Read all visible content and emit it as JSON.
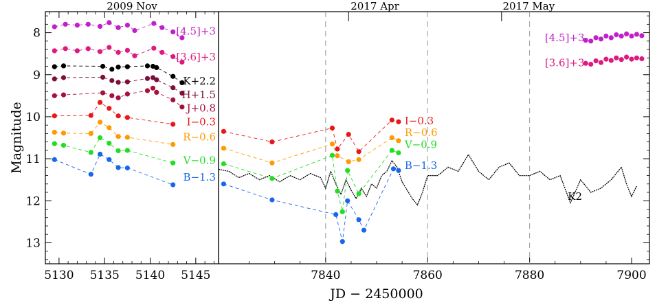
{
  "chart_data": {
    "type": "scatter",
    "ylabel": "Magnitude",
    "xlabel": "JD − 2450000",
    "ylim": [
      7.5,
      13.5
    ],
    "y_ticks": [
      8,
      9,
      10,
      11,
      12,
      13
    ],
    "y_tick_labels": [
      "8",
      "9",
      "10",
      "11",
      "12",
      "13"
    ],
    "panels": [
      {
        "name": "left",
        "title": "2009 Nov",
        "xlim": [
          5128.5,
          5147.5
        ],
        "x_ticks": [
          5130,
          5135,
          5140,
          5145
        ],
        "x_tick_labels": [
          "5130",
          "5135",
          "5140",
          "5145"
        ],
        "series": [
          {
            "name": "[4.5]+3",
            "color": "#c020c8",
            "x": [
              5129.5,
              5130.7,
              5132.0,
              5133.2,
              5134.5,
              5135.5,
              5136.5,
              5137.5,
              5138.3,
              5140.4,
              5141.3,
              5142.5,
              5143.5
            ],
            "y": [
              7.86,
              7.8,
              7.82,
              7.8,
              7.85,
              7.76,
              7.88,
              7.82,
              7.95,
              7.78,
              7.88,
              7.98,
              8.12
            ]
          },
          {
            "name": "[3.6]+3",
            "color": "#dd1a80",
            "x": [
              5129.5,
              5130.7,
              5132.0,
              5133.2,
              5134.5,
              5135.5,
              5136.5,
              5137.5,
              5138.3,
              5140.4,
              5141.3,
              5142.5,
              5143.5
            ],
            "y": [
              8.43,
              8.38,
              8.43,
              8.38,
              8.45,
              8.35,
              8.47,
              8.42,
              8.55,
              8.37,
              8.47,
              8.57,
              8.7
            ]
          },
          {
            "name": "K+2.2",
            "color": "#000000",
            "x": [
              5129.5,
              5130.5,
              5134.8,
              5135.8,
              5136.5,
              5137.5,
              5139.7,
              5140.3,
              5140.7,
              5142.5,
              5143.5
            ],
            "y": [
              8.81,
              8.79,
              8.8,
              8.87,
              8.82,
              8.81,
              8.79,
              8.8,
              8.83,
              9.04,
              9.19
            ]
          },
          {
            "name": "H+1.5",
            "color": "#7c0f3a",
            "x": [
              5129.5,
              5130.5,
              5134.8,
              5135.8,
              5136.5,
              5137.5,
              5139.7,
              5140.3,
              5140.7,
              5142.5,
              5143.5
            ],
            "y": [
              9.1,
              9.07,
              9.06,
              9.14,
              9.18,
              9.17,
              9.09,
              9.07,
              9.12,
              9.31,
              9.44
            ]
          },
          {
            "name": "J+0.8",
            "color": "#a8103c",
            "x": [
              5129.5,
              5130.5,
              5134.8,
              5135.8,
              5136.5,
              5137.5,
              5139.7,
              5140.3,
              5140.7,
              5142.5,
              5143.5
            ],
            "y": [
              9.5,
              9.48,
              9.43,
              9.5,
              9.55,
              9.46,
              9.38,
              9.32,
              9.42,
              9.6,
              9.77
            ]
          },
          {
            "name": "I−0.3",
            "color": "#e81818",
            "x": [
              5129.5,
              5133.5,
              5134.5,
              5135.5,
              5136.5,
              5137.5,
              5142.5
            ],
            "y": [
              9.98,
              9.97,
              9.66,
              9.8,
              9.98,
              10.02,
              10.18
            ]
          },
          {
            "name": "R−0.6",
            "color": "#ff9900",
            "x": [
              5129.5,
              5130.5,
              5133.5,
              5134.5,
              5135.5,
              5136.5,
              5137.5,
              5142.5
            ],
            "y": [
              10.37,
              10.39,
              10.4,
              10.13,
              10.26,
              10.47,
              10.49,
              10.66
            ]
          },
          {
            "name": "V−0.9",
            "color": "#22dd22",
            "x": [
              5129.5,
              5130.5,
              5133.5,
              5134.5,
              5135.5,
              5136.5,
              5137.5,
              5142.5
            ],
            "y": [
              10.64,
              10.68,
              10.85,
              10.5,
              10.63,
              10.81,
              10.8,
              11.1
            ]
          },
          {
            "name": "B−1.3",
            "color": "#1a66e8",
            "x": [
              5129.5,
              5133.5,
              5134.5,
              5135.5,
              5136.5,
              5137.5,
              5142.5
            ],
            "y": [
              11.02,
              11.37,
              10.89,
              11.02,
              11.21,
              11.22,
              11.62
            ]
          }
        ]
      },
      {
        "name": "right",
        "xlim": [
          7819.0,
          7903.5
        ],
        "x_ticks": [
          7840,
          7860,
          7880,
          7900
        ],
        "x_tick_labels": [
          "7840",
          "7860",
          "7880",
          "7900"
        ],
        "month_labels": [
          {
            "text": "2017 Apr",
            "x": 7844.5
          },
          {
            "text": "2017 May",
            "x": 7874.5
          }
        ],
        "vertical_dashed_lines": [
          7840,
          7860,
          7880
        ],
        "series": [
          {
            "name": "I−0.3",
            "color": "#e81818",
            "x": [
              7820.0,
              7829.5,
              7841.3,
              7842.3,
              7844.5,
              7846.5,
              7853.0,
              7854.3
            ],
            "y": [
              10.35,
              10.6,
              10.27,
              10.77,
              10.42,
              10.83,
              10.08,
              10.12
            ]
          },
          {
            "name": "R−0.6",
            "color": "#ff9900",
            "x": [
              7820.0,
              7829.5,
              7841.3,
              7842.3,
              7844.5,
              7846.5,
              7853.0,
              7854.3
            ],
            "y": [
              10.75,
              11.1,
              10.65,
              10.93,
              11.07,
              11.02,
              10.5,
              10.57
            ]
          },
          {
            "name": "V−0.9",
            "color": "#22dd22",
            "x": [
              7820.0,
              7829.5,
              7841.3,
              7842.3,
              7843.3,
              7844.3,
              7846.5,
              7853.0,
              7854.3
            ],
            "y": [
              11.12,
              11.47,
              10.92,
              11.77,
              12.26,
              11.28,
              11.83,
              10.8,
              10.86
            ]
          },
          {
            "name": "B−1.3",
            "color": "#1a66e8",
            "x": [
              7820.0,
              7829.5,
              7842.0,
              7843.3,
              7844.3,
              7846.5,
              7847.5,
              7853.3,
              7854.3
            ],
            "y": [
              11.6,
              11.98,
              12.33,
              12.97,
              12.0,
              12.45,
              12.7,
              11.24,
              11.28
            ]
          },
          {
            "name": "[4.5]+3",
            "color": "#c020c8",
            "x": [
              7891.0,
              7892.0,
              7893.0,
              7894.0,
              7895.0,
              7896.0,
              7897.0,
              7898.0,
              7899.0,
              7900.0,
              7901.0,
              7902.0
            ],
            "y": [
              8.18,
              8.2,
              8.12,
              8.15,
              8.08,
              8.12,
              8.05,
              8.08,
              8.03,
              8.08,
              8.04,
              8.07
            ]
          },
          {
            "name": "[3.6]+3",
            "color": "#dd1a80",
            "x": [
              7891.0,
              7892.0,
              7893.0,
              7894.0,
              7895.0,
              7896.0,
              7897.0,
              7898.0,
              7899.0,
              7900.0,
              7901.0,
              7902.0
            ],
            "y": [
              8.73,
              8.75,
              8.67,
              8.71,
              8.63,
              8.66,
              8.6,
              8.64,
              8.58,
              8.63,
              8.6,
              8.62
            ]
          }
        ],
        "k2": {
          "name": "K2",
          "color": "#000000",
          "x": [
            7819,
            7821,
            7823,
            7825,
            7827,
            7829,
            7831,
            7833,
            7835,
            7837,
            7839,
            7840,
            7841,
            7842,
            7843,
            7844,
            7845,
            7846,
            7847,
            7848,
            7849,
            7850,
            7851,
            7852,
            7853,
            7854,
            7855,
            7856,
            7857,
            7858,
            7859,
            7860,
            7862,
            7864,
            7866,
            7868,
            7870,
            7872,
            7874,
            7876,
            7878,
            7880,
            7882,
            7884,
            7886,
            7888,
            7890,
            7892,
            7894,
            7896,
            7898,
            7899,
            7900,
            7901
          ],
          "y": [
            11.25,
            11.3,
            11.45,
            11.35,
            11.5,
            11.4,
            11.55,
            11.4,
            11.5,
            11.35,
            11.45,
            11.7,
            11.3,
            11.6,
            11.85,
            11.5,
            11.75,
            11.95,
            11.7,
            11.9,
            11.6,
            11.7,
            11.4,
            11.3,
            11.05,
            11.2,
            11.55,
            11.75,
            11.95,
            12.1,
            11.8,
            11.4,
            11.4,
            11.2,
            11.3,
            10.9,
            11.3,
            11.5,
            11.2,
            11.1,
            11.4,
            11.4,
            11.3,
            11.5,
            11.4,
            12.05,
            11.5,
            11.8,
            11.7,
            11.5,
            11.2,
            11.6,
            11.9,
            11.65
          ]
        },
        "series_labels": [
          {
            "text": "I−0.3",
            "color": "#e81818",
            "y": 10.1
          },
          {
            "text": "R−0.6",
            "color": "#ff9900",
            "y": 10.38
          },
          {
            "text": "V−0.9",
            "color": "#22dd22",
            "y": 10.66
          },
          {
            "text": "B−1.3",
            "color": "#1a66e8",
            "y": 11.16
          }
        ],
        "k2_label": {
          "text": "K2",
          "color": "#000000",
          "x": 7887.5,
          "y": 11.9
        }
      }
    ],
    "left_series_labels": [
      {
        "text": "[4.5]+3",
        "color": "#c020c8",
        "y": 7.97
      },
      {
        "text": "[3.6]+3",
        "color": "#dd1a80",
        "y": 8.58
      },
      {
        "text": "K+2.2",
        "color": "#000000",
        "y": 9.15
      },
      {
        "text": "H+1.5",
        "color": "#7c0f3a",
        "y": 9.48
      },
      {
        "text": "J+0.8",
        "color": "#a8103c",
        "y": 9.8
      },
      {
        "text": "I−0.3",
        "color": "#e81818",
        "y": 10.12
      },
      {
        "text": "R−0.6",
        "color": "#ff9900",
        "y": 10.48
      },
      {
        "text": "V−0.9",
        "color": "#22dd22",
        "y": 11.04
      },
      {
        "text": "B−1.3",
        "color": "#1a66e8",
        "y": 11.44
      }
    ],
    "right_ir_labels": [
      {
        "text": "[4.5]+3",
        "color": "#c020c8",
        "y": 8.12
      },
      {
        "text": "[3.6]+3",
        "color": "#dd1a80",
        "y": 8.72
      }
    ]
  }
}
